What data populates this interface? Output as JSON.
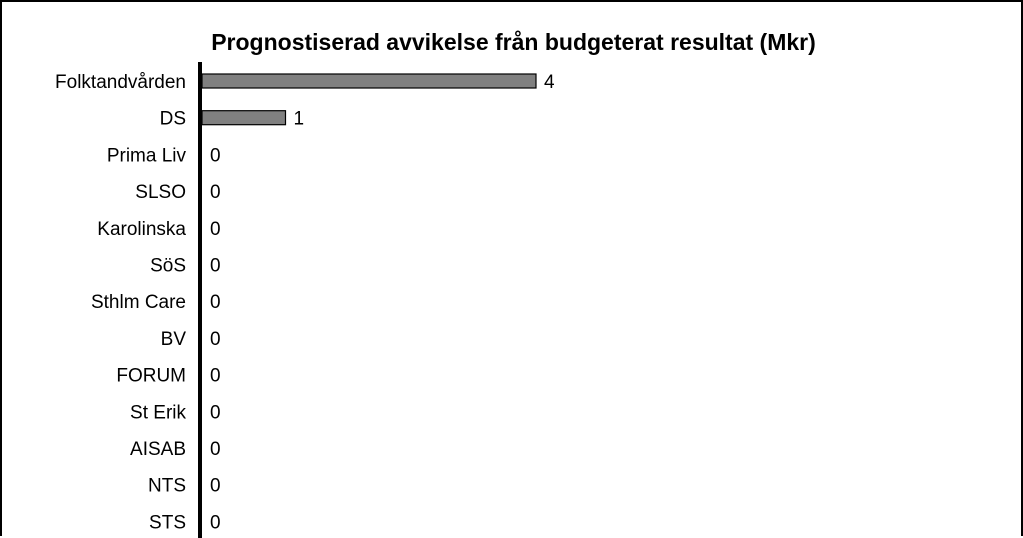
{
  "chart_data": {
    "type": "bar",
    "orientation": "horizontal",
    "title": "Prognostiserad avvikelse från budgeterat resultat (Mkr)",
    "categories": [
      "Folktandvården",
      "DS",
      "Prima Liv",
      "SLSO",
      "Karolinska",
      "SöS",
      "Sthlm Care",
      "BV",
      "FORUM",
      "St Erik",
      "AISAB",
      "NTS",
      "STS"
    ],
    "values": [
      4,
      1,
      0,
      0,
      0,
      0,
      0,
      0,
      0,
      0,
      0,
      0,
      0
    ],
    "value_labels": [
      "4",
      "1",
      "0",
      "0",
      "0",
      "0",
      "0",
      "0",
      "0",
      "0",
      "0",
      "0",
      "0"
    ],
    "bar_color": "#808080",
    "bar_edge_color": "#000000",
    "grid": false,
    "legend": "none"
  }
}
